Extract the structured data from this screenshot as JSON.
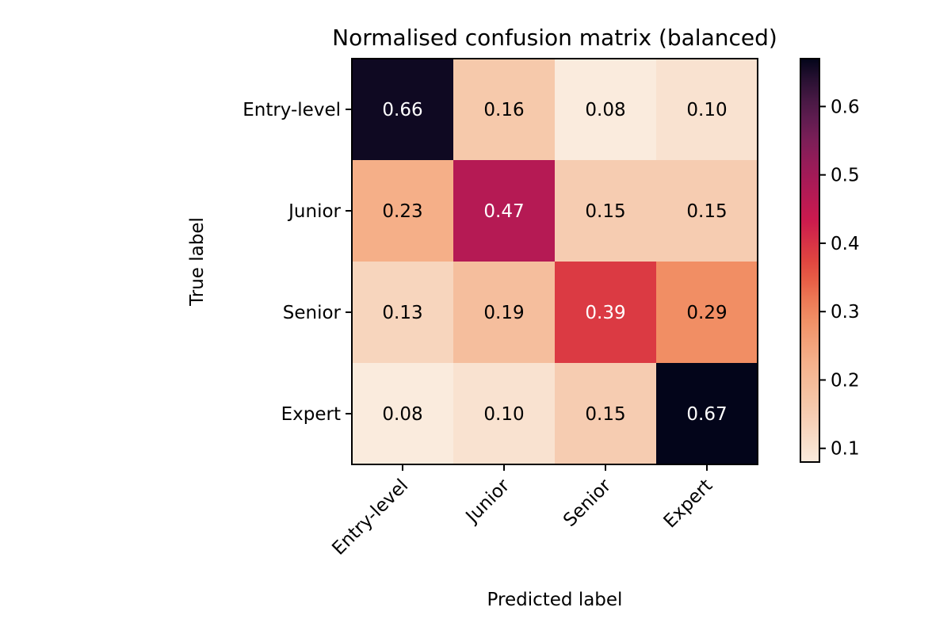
{
  "chart_data": {
    "type": "heatmap",
    "title": "Normalised confusion matrix (balanced)",
    "xlabel": "Predicted label",
    "ylabel": "True label",
    "x_categories": [
      "Entry-level",
      "Junior",
      "Senior",
      "Expert"
    ],
    "y_categories": [
      "Entry-level",
      "Junior",
      "Senior",
      "Expert"
    ],
    "values": [
      [
        0.66,
        0.16,
        0.08,
        0.1
      ],
      [
        0.23,
        0.47,
        0.15,
        0.15
      ],
      [
        0.13,
        0.19,
        0.39,
        0.29
      ],
      [
        0.08,
        0.1,
        0.15,
        0.67
      ]
    ],
    "cell_labels": [
      [
        "0.66",
        "0.16",
        "0.08",
        "0.10"
      ],
      [
        "0.23",
        "0.47",
        "0.15",
        "0.15"
      ],
      [
        "0.13",
        "0.19",
        "0.39",
        "0.29"
      ],
      [
        "0.08",
        "0.10",
        "0.15",
        "0.67"
      ]
    ],
    "colormap": "rocket_r",
    "colorbar": {
      "range": [
        0.08,
        0.67
      ],
      "ticks": [
        0.1,
        0.2,
        0.3,
        0.4,
        0.5,
        0.6
      ],
      "tick_labels": [
        "0.1",
        "0.2",
        "0.3",
        "0.4",
        "0.5",
        "0.6"
      ]
    },
    "text_colors": {
      "light": "#ffffff",
      "dark": "#000000"
    },
    "text_color_threshold": 0.375,
    "grid": false,
    "legend": "none"
  }
}
